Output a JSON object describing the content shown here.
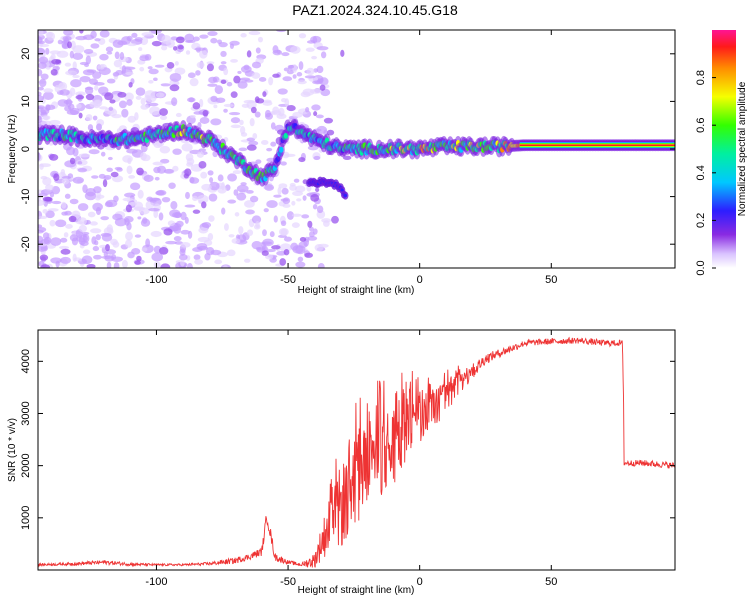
{
  "title": "PAZ1.2024.324.10.45.G18",
  "chart_data": [
    {
      "type": "heatmap",
      "xlabel": "Height of straight line (km)",
      "ylabel": "Frequency (Hz)",
      "xlim": [
        -145,
        97
      ],
      "ylim": [
        -25,
        25
      ],
      "xticks": [
        -100,
        -50,
        0,
        50
      ],
      "yticks": [
        -20,
        -10,
        0,
        10,
        20
      ],
      "colorbar": {
        "label": "Normalized spectral amplitude",
        "range": [
          0,
          1
        ],
        "ticks": [
          0.0,
          0.2,
          0.4,
          0.6,
          0.8
        ],
        "tick_labels": [
          "0.0",
          "0.2",
          "0.4",
          "0.6",
          "0.8"
        ],
        "colormap": "rainbow (white-violet-blue-cyan-green-yellow-red-magenta)"
      },
      "ridge": {
        "description": "dominant frequency track",
        "x": [
          -135,
          -125,
          -110,
          -100,
          -90,
          -80,
          -70,
          -60,
          -55,
          -50,
          -40,
          -30,
          -20,
          -10,
          0,
          10,
          20,
          30,
          40,
          50,
          60,
          70,
          80,
          90,
          97
        ],
        "y": [
          3,
          2,
          2,
          3,
          4,
          2,
          -2,
          -6,
          -4,
          5,
          2,
          0,
          0,
          0,
          0,
          0.5,
          0.5,
          0.5,
          0.8,
          0.8,
          0.8,
          0.8,
          0.8,
          0.8,
          0.8
        ],
        "amplitude": [
          0.35,
          0.3,
          0.4,
          0.4,
          0.45,
          0.45,
          0.4,
          0.45,
          0.3,
          0.35,
          0.35,
          0.35,
          0.4,
          0.45,
          0.55,
          0.5,
          0.5,
          0.5,
          0.8,
          0.9,
          0.9,
          0.9,
          0.9,
          0.9,
          0.9
        ]
      },
      "secondary_ridge": {
        "x": [
          -42,
          -38,
          -34,
          -30,
          -28
        ],
        "y": [
          -7,
          -7,
          -7,
          -8,
          -10
        ],
        "amplitude": [
          0.25,
          0.25,
          0.25,
          0.25,
          0.2
        ]
      }
    },
    {
      "type": "line",
      "xlabel": "Height of straight line (km)",
      "ylabel": "SNR (10 * v/v)",
      "xlim": [
        -145,
        97
      ],
      "ylim": [
        0,
        4600
      ],
      "xticks": [
        -100,
        -50,
        0,
        50
      ],
      "yticks": [
        1000,
        2000,
        3000,
        4000
      ],
      "series": [
        {
          "color": "#ee3333",
          "x": [
            -145,
            -130,
            -120,
            -110,
            -100,
            -90,
            -80,
            -70,
            -65,
            -60,
            -58,
            -55,
            -50,
            -45,
            -40,
            -35,
            -30,
            -25,
            -20,
            -15,
            -10,
            -5,
            0,
            5,
            10,
            15,
            20,
            25,
            30,
            35,
            40,
            50,
            60,
            70,
            75,
            77,
            78,
            85,
            97
          ],
          "y": [
            100,
            120,
            150,
            110,
            100,
            100,
            120,
            180,
            250,
            350,
            1050,
            250,
            150,
            100,
            180,
            800,
            1200,
            1700,
            2100,
            2300,
            2300,
            2800,
            2950,
            3100,
            3300,
            3600,
            3800,
            4050,
            4150,
            4250,
            4350,
            4380,
            4400,
            4350,
            4350,
            4350,
            2050,
            2050,
            2000
          ],
          "noise": [
            20,
            30,
            40,
            30,
            20,
            20,
            30,
            60,
            60,
            80,
            150,
            80,
            40,
            30,
            150,
            500,
            800,
            900,
            1000,
            900,
            800,
            700,
            500,
            400,
            350,
            250,
            150,
            100,
            80,
            70,
            60,
            60,
            60,
            60,
            60,
            60,
            60,
            60,
            60
          ]
        }
      ]
    }
  ]
}
